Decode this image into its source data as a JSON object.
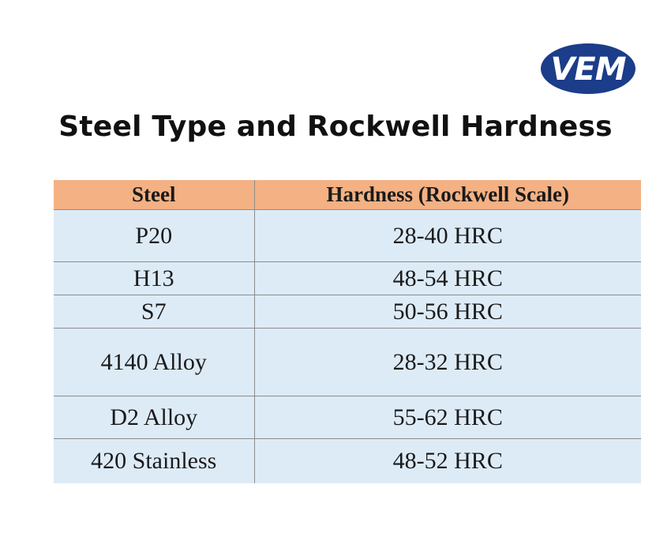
{
  "brand": {
    "logo_text": "VEM",
    "logo_color": "#1b3d8a"
  },
  "title": "Steel Type and Rockwell Hardness",
  "table": {
    "headers": [
      "Steel",
      "Hardness (Rockwell Scale)"
    ],
    "rows": [
      [
        "P20",
        "28-40 HRC"
      ],
      [
        "H13",
        "48-54 HRC"
      ],
      [
        "S7",
        "50-56 HRC"
      ],
      [
        "4140 Alloy",
        "28-32 HRC"
      ],
      [
        "D2 Alloy",
        "55-62 HRC"
      ],
      [
        "420 Stainless",
        "48-52 HRC"
      ]
    ],
    "header_color": "#f4b183",
    "row_color": "#ddebf7"
  }
}
